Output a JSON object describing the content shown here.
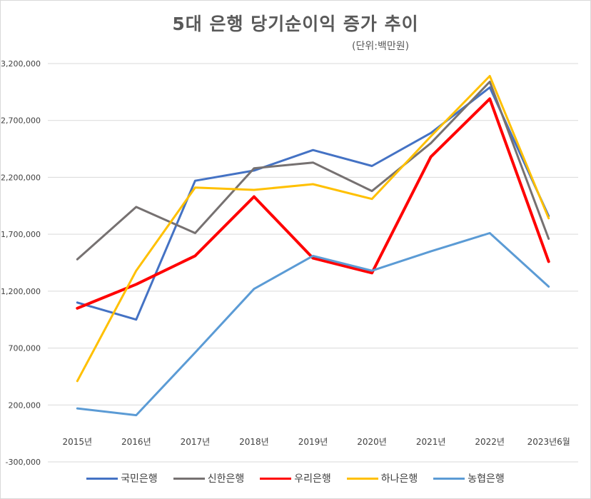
{
  "chart_data": {
    "type": "line",
    "title": "5대 은행 당기순이익 증가 추이",
    "subtitle": "(단위:백만원)",
    "x": [
      "2015년",
      "2016년",
      "2017년",
      "2018년",
      "2019년",
      "2020년",
      "2021년",
      "2022년",
      "2023년6월"
    ],
    "yticks": [
      "3,200,000",
      "2,700,000",
      "2,200,000",
      "1,700,000",
      "1,200,000",
      "700,000",
      "200,000",
      "-300,000"
    ],
    "ylim": [
      -300000,
      3200000
    ],
    "grid": true,
    "legend_position": "bottom",
    "series": [
      {
        "name": "국민은행",
        "color": "#4472c4",
        "values": [
          1100000,
          950000,
          2170000,
          2260000,
          2440000,
          2300000,
          2590000,
          2990000,
          1860000
        ]
      },
      {
        "name": "신한은행",
        "color": "#767171",
        "values": [
          1480000,
          1940000,
          1710000,
          2280000,
          2330000,
          2080000,
          2500000,
          3040000,
          1660000
        ]
      },
      {
        "name": "우리은행",
        "color": "#ff0000",
        "values": [
          1050000,
          1260000,
          1510000,
          2030000,
          1490000,
          1360000,
          2380000,
          2890000,
          1460000
        ]
      },
      {
        "name": "하나은행",
        "color": "#ffc000",
        "values": [
          410000,
          1380000,
          2110000,
          2090000,
          2140000,
          2010000,
          2560000,
          3090000,
          1840000
        ]
      },
      {
        "name": "농협은행",
        "color": "#5b9bd5",
        "values": [
          170000,
          110000,
          660000,
          1220000,
          1510000,
          1380000,
          1550000,
          1710000,
          1240000
        ]
      }
    ]
  }
}
